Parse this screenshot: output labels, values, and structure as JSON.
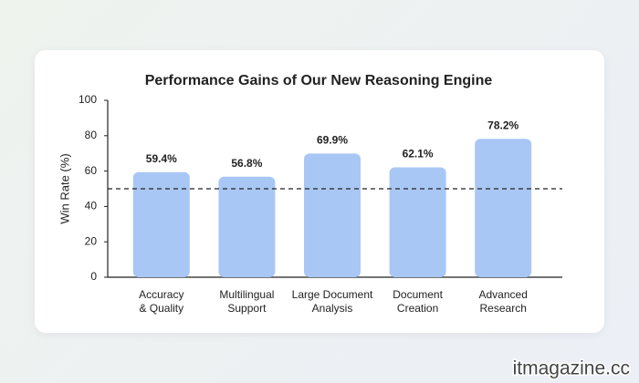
{
  "chart_data": {
    "type": "bar",
    "title": "Performance Gains of Our New Reasoning Engine",
    "y_label": "Win Rate (%)",
    "categories": [
      "Accuracy\n& Quality",
      "Multilingual\nSupport",
      "Large Document\nAnalysis",
      "Document\nCreation",
      "Advanced\nResearch"
    ],
    "values": [
      59.4,
      56.8,
      69.9,
      62.1,
      78.2
    ],
    "value_labels": [
      "59.4%",
      "56.8%",
      "69.9%",
      "62.1%",
      "78.2%"
    ],
    "color": "#a9c7f5",
    "ylim": [
      0,
      100
    ],
    "yticks": [
      0,
      20,
      40,
      60,
      80,
      100
    ],
    "reference_line": 50
  },
  "watermark": "itmagazine.cc"
}
